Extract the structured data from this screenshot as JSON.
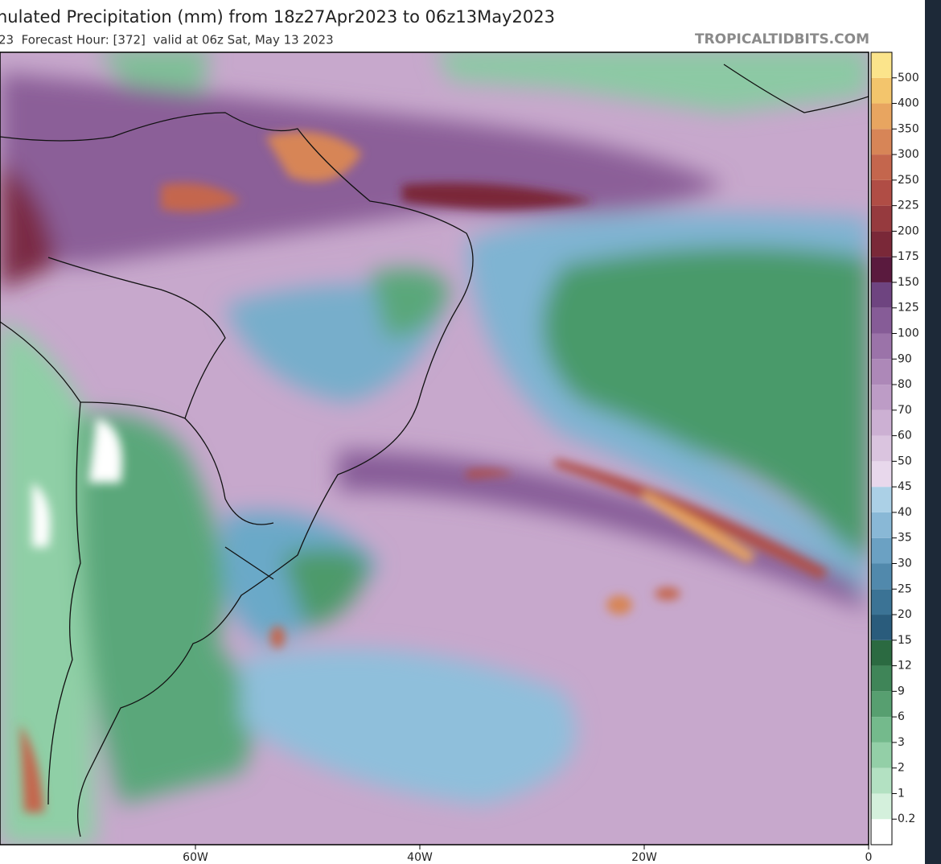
{
  "header": {
    "title": "nulated Precipitation (mm) from 18z27Apr2023 to 06z13May2023",
    "subtitle": "23  Forecast Hour: [372]  valid at 06z Sat, May 13 2023",
    "source": "TROPICALTIDBITS.COM"
  },
  "colorbar": {
    "levels": [
      0.2,
      1,
      2,
      3,
      6,
      9,
      12,
      15,
      20,
      25,
      30,
      35,
      40,
      45,
      50,
      60,
      70,
      80,
      90,
      100,
      125,
      150,
      175,
      200,
      225,
      250,
      300,
      350,
      400,
      500
    ],
    "colors": [
      "#ffffff",
      "#d4f0dc",
      "#b3e1c2",
      "#93cfa7",
      "#74ba8c",
      "#579f70",
      "#3f8558",
      "#2b6a41",
      "#2a5c7c",
      "#3b7395",
      "#5189ac",
      "#6ba1c3",
      "#89b8d6",
      "#abd0e6",
      "#e8d8ec",
      "#dac4df",
      "#ccb0d3",
      "#bd9cc6",
      "#ad88b8",
      "#9b73a9",
      "#865c97",
      "#6e4480",
      "#5a1a3e",
      "#7a2838",
      "#963a3e",
      "#b04d45",
      "#c4664d",
      "#d78557",
      "#e8a560",
      "#f3c56c",
      "#fbe48b"
    ]
  },
  "map": {
    "lon_labels": [
      "60W",
      "40W",
      "20W",
      "0"
    ]
  }
}
